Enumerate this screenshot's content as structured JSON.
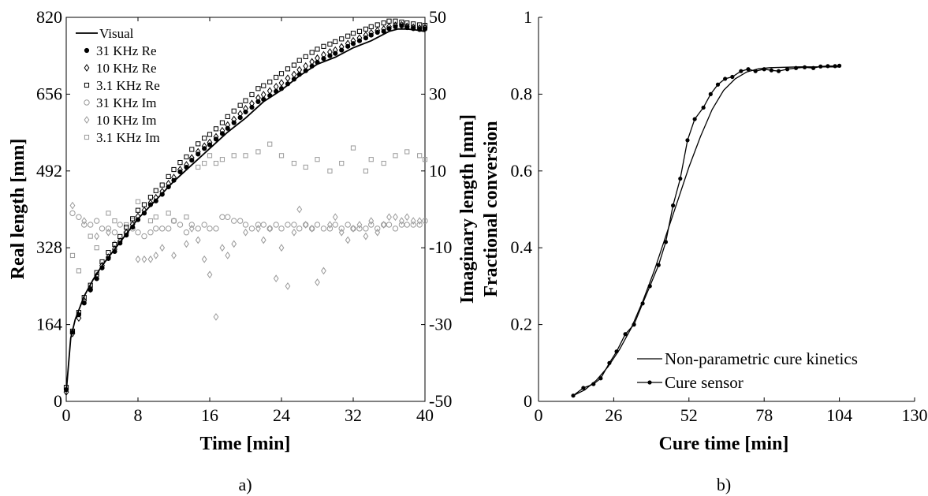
{
  "chart_data": [
    {
      "type": "scatter",
      "caption": "a)",
      "xlabel": "Time [min]",
      "ylabel": "Real length [mm]",
      "y2label": "Imaginary length [mm]",
      "xlim": [
        0,
        40
      ],
      "ylim": [
        0,
        820
      ],
      "y2lim": [
        -50,
        50
      ],
      "xticks": [
        "0",
        "8",
        "16",
        "24",
        "32",
        "40"
      ],
      "yticks": [
        "0",
        "164",
        "328",
        "492",
        "656",
        "820"
      ],
      "y2ticks": [
        "-50",
        "-30",
        "-10",
        "10",
        "30",
        "50"
      ],
      "legend_position": "top-left",
      "grid": false,
      "visual_line": {
        "name": "Visual",
        "x": [
          0,
          0.5,
          1,
          2,
          3,
          4,
          5,
          6,
          8,
          10,
          12,
          14,
          16,
          18,
          20,
          22,
          24,
          26,
          28,
          30,
          32,
          34,
          36,
          37,
          38,
          39,
          40
        ],
        "y": [
          20,
          135,
          175,
          225,
          260,
          290,
          315,
          340,
          390,
          430,
          470,
          505,
          540,
          575,
          605,
          640,
          665,
          695,
          720,
          735,
          755,
          770,
          790,
          795,
          795,
          793,
          790
        ]
      },
      "real_series": [
        {
          "name": "31 KHz Re",
          "marker": "filled-circle",
          "x": [
            0,
            0.7,
            1.4,
            2,
            2.7,
            3.4,
            4,
            4.7,
            5.4,
            6,
            6.7,
            7.4,
            8,
            8.7,
            9.4,
            10,
            10.7,
            11.4,
            12,
            12.7,
            13.4,
            14,
            14.7,
            15.4,
            16,
            16.7,
            17.4,
            18,
            18.7,
            19.4,
            20,
            20.7,
            21.4,
            22,
            22.7,
            23.4,
            24,
            24.7,
            25.4,
            26,
            26.7,
            27.4,
            28,
            28.7,
            29.4,
            30,
            30.7,
            31.4,
            32,
            32.7,
            33.4,
            34,
            34.7,
            35.4,
            36,
            36.7,
            37.4,
            38,
            38.7,
            39.4,
            40
          ],
          "y": [
            25,
            148,
            185,
            210,
            238,
            262,
            285,
            305,
            320,
            338,
            355,
            372,
            388,
            402,
            420,
            428,
            442,
            458,
            472,
            490,
            500,
            515,
            528,
            540,
            548,
            560,
            572,
            583,
            595,
            606,
            618,
            628,
            640,
            645,
            653,
            662,
            668,
            678,
            688,
            698,
            706,
            716,
            724,
            732,
            738,
            743,
            750,
            758,
            764,
            770,
            776,
            782,
            788,
            790,
            796,
            800,
            802,
            798,
            796,
            794,
            795
          ]
        },
        {
          "name": "10 KHz Re",
          "marker": "open-diamond",
          "x": [
            0,
            0.7,
            1.4,
            2,
            2.7,
            3.4,
            4,
            4.7,
            5.4,
            6,
            6.7,
            7.4,
            8,
            8.7,
            9.4,
            10,
            10.7,
            11.4,
            12,
            12.7,
            13.4,
            14,
            14.7,
            15.4,
            16,
            16.7,
            17.4,
            18,
            18.7,
            19.4,
            20,
            20.7,
            21.4,
            22,
            22.7,
            23.4,
            24,
            24.7,
            25.4,
            26,
            26.7,
            27.4,
            28,
            28.7,
            29.4,
            30,
            30.7,
            31.4,
            32,
            32.7,
            33.4,
            34,
            34.7,
            35.4,
            36,
            36.7,
            37.4,
            38,
            38.7,
            39.4,
            40
          ],
          "y": [
            20,
            145,
            178,
            215,
            240,
            268,
            290,
            308,
            325,
            342,
            360,
            378,
            395,
            408,
            424,
            435,
            448,
            465,
            478,
            495,
            505,
            520,
            533,
            545,
            553,
            565,
            578,
            590,
            602,
            614,
            625,
            636,
            648,
            655,
            663,
            672,
            680,
            690,
            698,
            708,
            716,
            725,
            733,
            740,
            746,
            750,
            757,
            764,
            770,
            776,
            782,
            787,
            792,
            795,
            800,
            803,
            804,
            801,
            799,
            797,
            798
          ]
        },
        {
          "name": "3.1 KHz Re",
          "marker": "open-square",
          "x": [
            0,
            0.7,
            1.4,
            2,
            2.7,
            3.4,
            4,
            4.7,
            5.4,
            6,
            6.7,
            7.4,
            8,
            8.7,
            9.4,
            10,
            10.7,
            11.4,
            12,
            12.7,
            13.4,
            14,
            14.7,
            15.4,
            16,
            16.7,
            17.4,
            18,
            18.7,
            19.4,
            20,
            20.7,
            21.4,
            22,
            22.7,
            23.4,
            24,
            24.7,
            25.4,
            26,
            26.7,
            27.4,
            28,
            28.7,
            29.4,
            30,
            30.7,
            31.4,
            32,
            32.7,
            33.4,
            34,
            34.7,
            35.4,
            36,
            36.7,
            37.4,
            38,
            38.7,
            39.4,
            40
          ],
          "y": [
            30,
            150,
            190,
            222,
            248,
            275,
            298,
            318,
            335,
            352,
            372,
            390,
            408,
            420,
            436,
            450,
            462,
            480,
            495,
            510,
            522,
            538,
            550,
            562,
            570,
            582,
            595,
            608,
            620,
            632,
            642,
            655,
            668,
            674,
            682,
            692,
            700,
            710,
            718,
            728,
            736,
            745,
            752,
            758,
            763,
            768,
            774,
            780,
            786,
            790,
            795,
            800,
            804,
            808,
            812,
            812,
            810,
            808,
            806,
            804,
            803
          ]
        }
      ],
      "imag_series": [
        {
          "name": "31 KHz Im",
          "marker": "open-circle",
          "x": [
            0.7,
            1.4,
            2,
            2.7,
            3.4,
            4,
            4.7,
            5.4,
            6,
            6.7,
            7.4,
            8,
            8.7,
            9.4,
            10,
            10.7,
            11.4,
            12,
            12.7,
            13.4,
            14,
            14.7,
            15.4,
            16,
            16.7,
            17.4,
            18,
            18.7,
            19.4,
            20,
            20.7,
            21.4,
            22,
            22.7,
            23.4,
            24,
            24.7,
            25.4,
            26,
            26.7,
            27.4,
            28,
            28.7,
            29.4,
            30,
            30.7,
            31.4,
            32,
            32.7,
            33.4,
            34,
            34.7,
            35.4,
            36,
            36.7,
            37.4,
            38,
            38.7,
            39.4,
            40
          ],
          "y": [
            -1,
            -2,
            -4,
            -4,
            -3,
            -5,
            -5,
            -6,
            -4,
            -6,
            -5,
            -6,
            -7,
            -6,
            -5,
            -5,
            -5,
            -3,
            -4,
            -6,
            -4,
            -5,
            -4,
            -5,
            -5,
            -2,
            -2,
            -3,
            -3,
            -4,
            -5,
            -4,
            -4,
            -5,
            -4,
            -5,
            -4,
            -4,
            -5,
            -4,
            -5,
            -4,
            -5,
            -5,
            -4,
            -5,
            -4,
            -5,
            -5,
            -5,
            -4,
            -5,
            -4,
            -4,
            -5,
            -4,
            -4,
            -4,
            -4,
            -3
          ]
        },
        {
          "name": "10 KHz Im",
          "marker": "open-diamond",
          "x": [
            0.7,
            2,
            3.4,
            4.7,
            5.4,
            6.7,
            8,
            8.7,
            9.4,
            10,
            10.7,
            12,
            13.4,
            14,
            14.7,
            15.4,
            16,
            16.7,
            17.4,
            18,
            18.7,
            20,
            21.4,
            22,
            22.7,
            23.4,
            24,
            24.7,
            25.4,
            26,
            26.7,
            27.4,
            28,
            28.7,
            29.4,
            30,
            30.7,
            31.4,
            32,
            32.7,
            33.4,
            34,
            34.7,
            35.4,
            36,
            36.7,
            37.4,
            38,
            38.7,
            39.4
          ],
          "y": [
            1,
            -3,
            -7,
            -6,
            -9,
            -6,
            -13,
            -13,
            -13,
            -12,
            -10,
            -12,
            -9,
            -5,
            -8,
            -13,
            -17,
            -28,
            -10,
            -12,
            -9,
            -6,
            -5,
            -8,
            -5,
            -18,
            -10,
            -20,
            -6,
            0,
            -4,
            -5,
            -19,
            -16,
            -4,
            -2,
            -6,
            -8,
            -5,
            -4,
            -7,
            -3,
            -6,
            -4,
            -2,
            -2,
            -3,
            -2,
            -3,
            -3
          ]
        },
        {
          "name": "3.1 KHz Im",
          "marker": "open-square",
          "x": [
            0.7,
            1.4,
            2.7,
            3.4,
            4.7,
            5.4,
            6.7,
            7.4,
            8,
            9.4,
            10,
            11.4,
            12,
            13.4,
            14.7,
            15.4,
            16,
            16.7,
            17.4,
            18.7,
            20,
            21.4,
            22.7,
            24,
            25.4,
            26.7,
            28,
            29.4,
            30.7,
            32,
            33.4,
            34,
            35.4,
            36.7,
            38,
            39.4,
            40
          ],
          "y": [
            -12,
            -16,
            -7,
            -10,
            -1,
            -3,
            -4,
            -3,
            2,
            -3,
            -2,
            -1,
            -3,
            -2,
            11,
            12,
            14,
            12,
            13,
            14,
            14,
            15,
            17,
            14,
            12,
            11,
            13,
            10,
            12,
            16,
            10,
            13,
            12,
            14,
            15,
            14,
            13
          ]
        }
      ]
    },
    {
      "type": "line",
      "caption": "b)",
      "xlabel": "Cure time [min]",
      "ylabel": "Fractional conversion",
      "xlim": [
        0,
        130
      ],
      "ylim": [
        0,
        1
      ],
      "xticks": [
        "0",
        "26",
        "52",
        "78",
        "104",
        "130"
      ],
      "yticks": [
        "0",
        "0.2",
        "0.4",
        "0.6",
        "0.8",
        "1"
      ],
      "legend_position": "bottom-right",
      "grid": false,
      "series": [
        {
          "name": "Non-parametric cure kinetics",
          "marker": "none",
          "x": [
            12,
            16,
            20,
            24,
            28,
            32,
            36,
            40,
            44,
            48,
            52,
            56,
            60,
            64,
            68,
            72,
            76,
            80,
            85,
            90,
            95,
            100,
            104
          ],
          "y": [
            0.015,
            0.03,
            0.055,
            0.09,
            0.135,
            0.19,
            0.26,
            0.34,
            0.43,
            0.52,
            0.61,
            0.69,
            0.76,
            0.81,
            0.84,
            0.858,
            0.866,
            0.869,
            0.87,
            0.871,
            0.871,
            0.871,
            0.871
          ]
        },
        {
          "name": "Cure sensor",
          "marker": "filled-dot",
          "x": [
            12,
            15.5,
            19,
            21.5,
            24.5,
            27,
            30,
            33,
            36,
            38.5,
            41.5,
            44,
            46.5,
            49,
            51.5,
            54,
            57,
            59.5,
            62,
            64.5,
            67,
            70,
            72.5,
            75,
            78,
            80.5,
            83,
            86,
            89,
            92,
            95,
            97.5,
            100,
            102.5,
            104
          ],
          "y": [
            0.015,
            0.035,
            0.045,
            0.06,
            0.1,
            0.13,
            0.175,
            0.2,
            0.255,
            0.3,
            0.355,
            0.415,
            0.51,
            0.58,
            0.68,
            0.735,
            0.765,
            0.8,
            0.825,
            0.84,
            0.845,
            0.86,
            0.865,
            0.86,
            0.865,
            0.862,
            0.86,
            0.865,
            0.868,
            0.87,
            0.868,
            0.872,
            0.873,
            0.873,
            0.874
          ]
        }
      ]
    }
  ]
}
